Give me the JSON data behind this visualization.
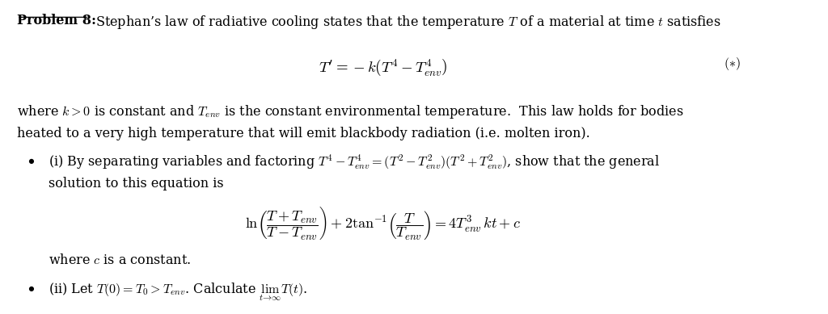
{
  "background_color": "#ffffff",
  "text_color": "#000000",
  "fig_width": 10.24,
  "fig_height": 3.89,
  "dpi": 100,
  "fs_base": 11.5,
  "fs_eq": 13.5,
  "fs_eq2": 13.0,
  "title_bold": "Problem 8:",
  "title_rest": " Stephan’s law of radiative cooling states that the temperature $T$ of a material at time $t$ satisfies",
  "eq_main": "$T^{\\prime} = -k\\left(T^4 - T_{env}^4\\right)$",
  "eq_label": "$(*)$",
  "para1_line1": "where $k > 0$ is constant and $T_{env}$ is the constant environmental temperature.  This law holds for bodies",
  "para1_line2": "heated to a very high temperature that will emit blackbody radiation (i.e. molten iron).",
  "bullet1_line1": "(i) By separating variables and factoring $T^4 - T_{env}^4 = (T^2 - T_{env}^2)(T^2 + T_{env}^2)$, show that the general",
  "bullet1_line2": "solution to this equation is",
  "eq_solution": "$\\ln\\!\\left(\\dfrac{T + T_{env}}{T - T_{env}}\\right) + 2\\tan^{-1}\\!\\left(\\dfrac{T}{T_{env}}\\right) = 4T_{env}^3\\, kt + c$",
  "para2": "where $c$ is a constant.",
  "bullet2": "(ii) Let $T(0) = T_0 > T_{env}$. Calculate $\\lim_{t \\to \\infty} T(t)$."
}
